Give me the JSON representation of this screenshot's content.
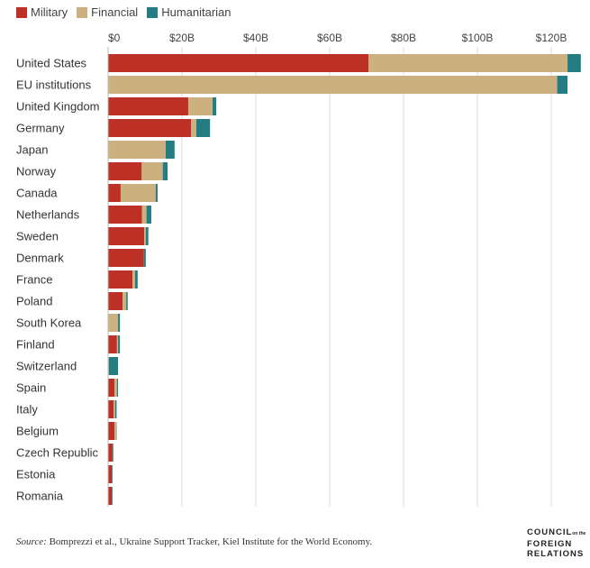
{
  "chart_data": {
    "type": "bar",
    "orientation": "horizontal",
    "stacked": true,
    "categories": [
      "United States",
      "EU institutions",
      "United Kingdom",
      "Germany",
      "Japan",
      "Norway",
      "Canada",
      "Netherlands",
      "Sweden",
      "Denmark",
      "France",
      "Poland",
      "South Korea",
      "Finland",
      "Switzerland",
      "Spain",
      "Italy",
      "Belgium",
      "Czech Republic",
      "Estonia",
      "Romania"
    ],
    "series": [
      {
        "name": "Military",
        "color": "#bd3026",
        "values": [
          70.5,
          0,
          21.7,
          22.5,
          0,
          9.1,
          3.4,
          9.2,
          9.8,
          9.7,
          6.6,
          3.9,
          0,
          2.4,
          0,
          1.7,
          1.5,
          1.7,
          1.2,
          1.0,
          1.0
        ]
      },
      {
        "name": "Financial",
        "color": "#ccb07f",
        "values": [
          53.9,
          121.6,
          6.6,
          1.4,
          15.6,
          5.7,
          9.5,
          1.2,
          0.4,
          0,
          0.7,
          1.0,
          2.7,
          0.3,
          0.2,
          0.7,
          0.4,
          0.5,
          0,
          0,
          0
        ]
      },
      {
        "name": "Humanitarian",
        "color": "#237d83",
        "values": [
          3.6,
          2.8,
          1.0,
          3.7,
          2.4,
          1.3,
          0.5,
          1.3,
          0.7,
          0.5,
          0.7,
          0.4,
          0.5,
          0.5,
          2.5,
          0.3,
          0.4,
          0.1,
          0.2,
          0.2,
          0.2
        ]
      }
    ],
    "xticks": [
      0,
      20,
      40,
      60,
      80,
      100,
      120
    ],
    "xtick_labels": [
      "$0",
      "$20B",
      "$40B",
      "$60B",
      "$80B",
      "$100B",
      "$120B"
    ],
    "xlim": [
      0,
      128
    ],
    "grid": true,
    "legend_position": "top-left"
  },
  "legend": [
    "Military",
    "Financial",
    "Humanitarian"
  ],
  "source": {
    "label": "Source:",
    "text": " Bomprezzi et al., Ukraine Support Tracker, Kiel Institute for the World Economy."
  },
  "logo": {
    "line1": "COUNCIL",
    "on": "on the",
    "line2": "FOREIGN",
    "line3": "RELATIONS"
  }
}
